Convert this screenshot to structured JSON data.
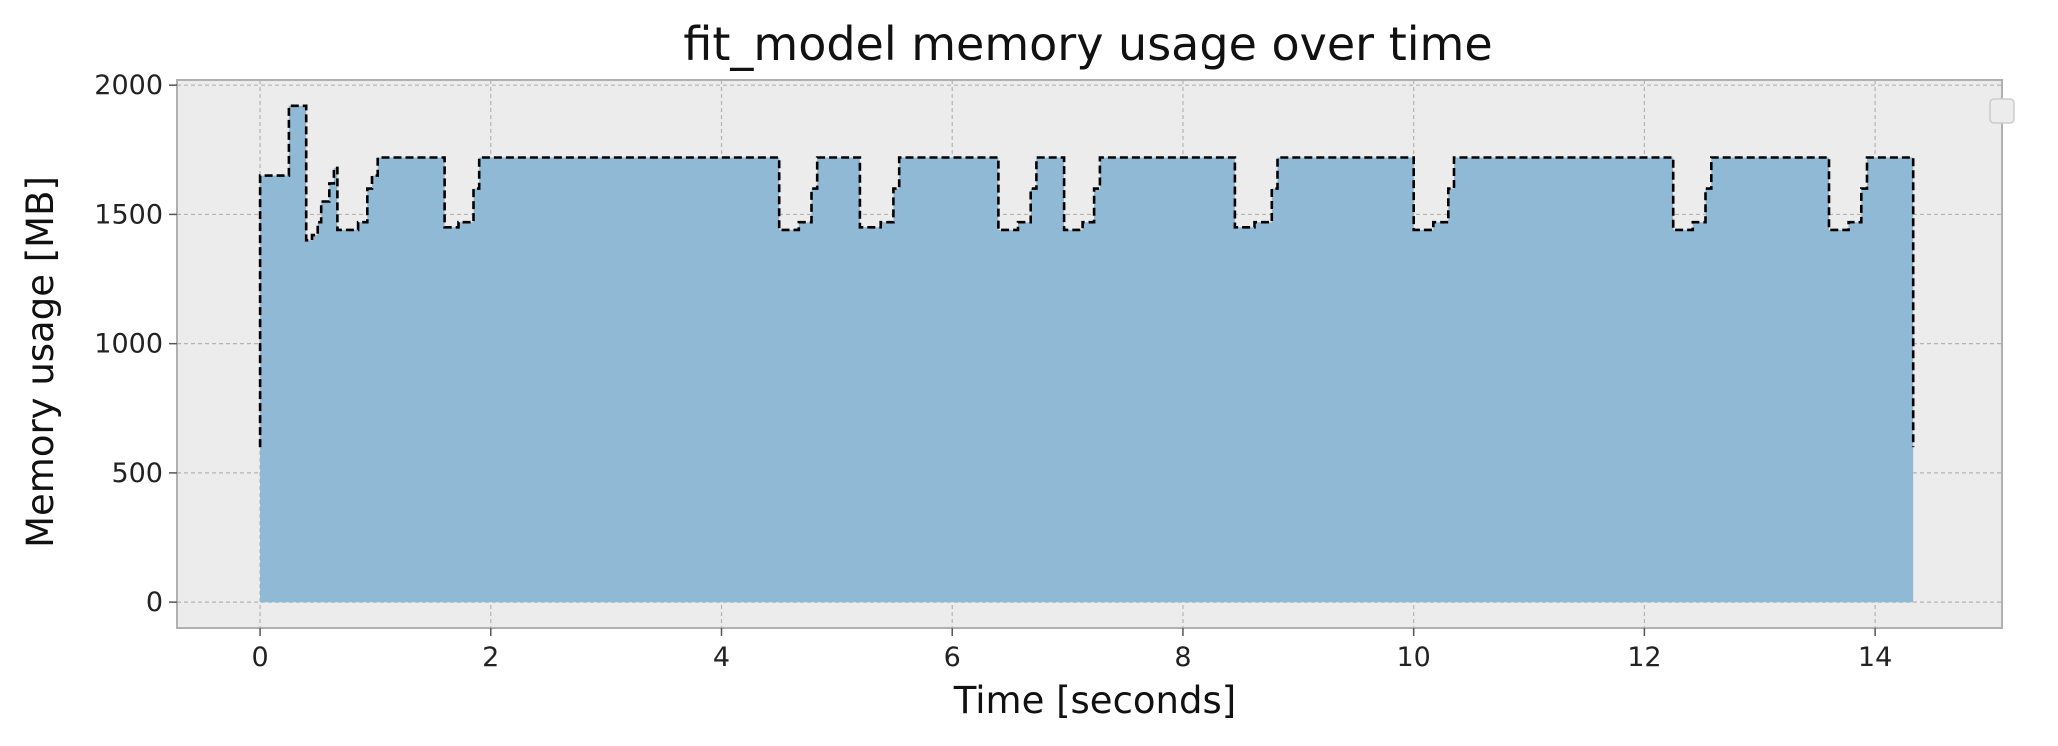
{
  "chart_data": {
    "type": "area",
    "title": "fit_model memory usage over time",
    "xlabel": "Time [seconds]",
    "ylabel": "Memory usage [MB]",
    "xlim": [
      -0.72,
      15.1
    ],
    "ylim": [
      -100,
      2020
    ],
    "xticks": [
      0,
      2,
      4,
      6,
      8,
      10,
      12,
      14
    ],
    "yticks": [
      0,
      500,
      1000,
      1500,
      2000
    ],
    "grid": true,
    "legend": "top-right (empty)",
    "colors": {
      "background": "#ececec",
      "fill": "#8fb9d4",
      "line": "#000000",
      "grid": "#b4b4b4",
      "frame": "#b0b0b0"
    },
    "series": [
      {
        "style": "step, dashed outline",
        "x": [
          0,
          0,
          0.22,
          0.25,
          0.4,
          0.45,
          0.5,
          0.53,
          0.57,
          0.6,
          0.64,
          0.67,
          0.85,
          0.93,
          0.97,
          1.02,
          1.6,
          1.72,
          1.85,
          1.9,
          4.5,
          4.67,
          4.78,
          4.83,
          5.2,
          5.38,
          5.49,
          5.54,
          6.4,
          6.57,
          6.68,
          6.73,
          6.97,
          7.13,
          7.23,
          7.28,
          8.45,
          8.62,
          8.77,
          8.82,
          10.0,
          10.17,
          10.3,
          10.35,
          12.25,
          12.42,
          12.53,
          12.58,
          13.6,
          13.77,
          13.88,
          13.93,
          14.33,
          14.33
        ],
        "y": [
          600,
          1650,
          1650,
          1920,
          1400,
          1420,
          1470,
          1550,
          1550,
          1620,
          1680,
          1440,
          1470,
          1600,
          1650,
          1720,
          1450,
          1470,
          1600,
          1720,
          1440,
          1470,
          1600,
          1720,
          1450,
          1470,
          1600,
          1720,
          1440,
          1470,
          1600,
          1720,
          1440,
          1470,
          1600,
          1720,
          1450,
          1470,
          1600,
          1720,
          1440,
          1470,
          1600,
          1720,
          1440,
          1470,
          1600,
          1720,
          1440,
          1470,
          1600,
          1720,
          1510,
          600
        ]
      }
    ]
  }
}
